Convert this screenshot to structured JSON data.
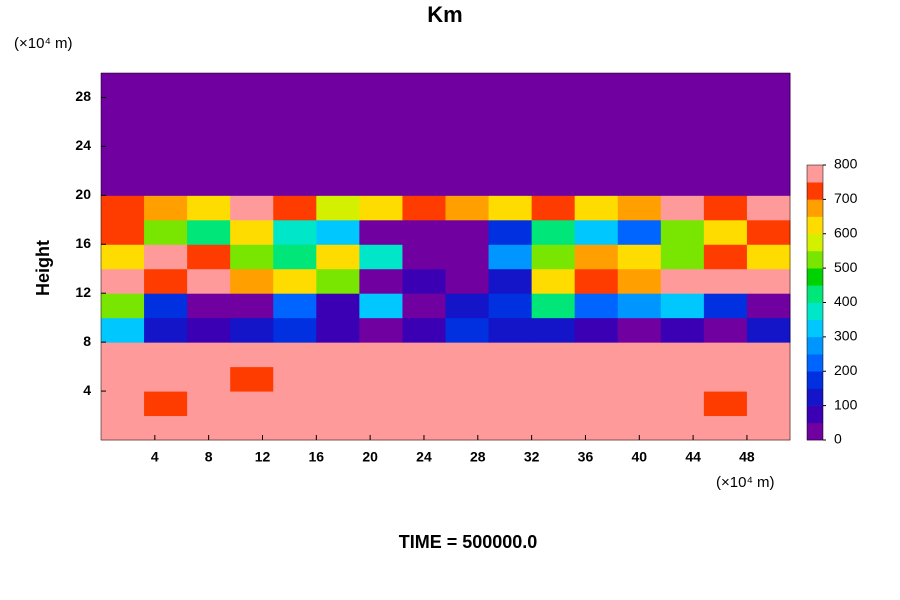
{
  "chart_data": {
    "type": "contour",
    "title": "Km",
    "y_unit": "(×10⁴ m)",
    "x_unit": "(×10⁴ m)",
    "ylabel": "Height",
    "footer": "TIME = 500000.0",
    "xlim": [
      0,
      51.2
    ],
    "ylim": [
      0,
      30
    ],
    "xticks": [
      4,
      8,
      12,
      16,
      20,
      24,
      28,
      32,
      36,
      40,
      44,
      48
    ],
    "yticks": [
      4,
      8,
      12,
      16,
      20,
      24,
      28
    ],
    "levels": [
      0,
      50,
      100,
      150,
      200,
      250,
      300,
      350,
      400,
      450,
      500,
      550,
      600,
      650,
      700,
      750,
      800
    ],
    "colors": [
      "#7000a0",
      "#3c00b4",
      "#1414c8",
      "#0030e0",
      "#0064ff",
      "#0096ff",
      "#00c8ff",
      "#00e6c8",
      "#00e678",
      "#00d200",
      "#78e600",
      "#d2f000",
      "#ffdc00",
      "#ffa000",
      "#ff3c00",
      "#ff9a9a"
    ],
    "colorbar_ticks": [
      0,
      100,
      200,
      300,
      400,
      500,
      600,
      700,
      800
    ],
    "z": [
      [
        800,
        800,
        800,
        800,
        800,
        800,
        800,
        800,
        800,
        800,
        800,
        800,
        800,
        800,
        800,
        800
      ],
      [
        800,
        700,
        800,
        800,
        800,
        800,
        800,
        800,
        800,
        800,
        800,
        800,
        800,
        750,
        700,
        800
      ],
      [
        800,
        800,
        800,
        700,
        800,
        800,
        800,
        800,
        800,
        750,
        800,
        750,
        800,
        800,
        800,
        800
      ],
      [
        800,
        800,
        800,
        800,
        800,
        800,
        800,
        800,
        750,
        800,
        800,
        800,
        800,
        800,
        800,
        800
      ],
      [
        300,
        100,
        50,
        100,
        150,
        50,
        0,
        50,
        150,
        100,
        100,
        50,
        0,
        50,
        0,
        100
      ],
      [
        500,
        150,
        0,
        0,
        200,
        50,
        300,
        0,
        100,
        150,
        400,
        200,
        250,
        300,
        150,
        0
      ],
      [
        800,
        700,
        800,
        650,
        600,
        500,
        0,
        50,
        0,
        100,
        600,
        700,
        650,
        800,
        750,
        800
      ],
      [
        600,
        800,
        700,
        500,
        400,
        600,
        350,
        0,
        0,
        250,
        500,
        650,
        600,
        500,
        700,
        600
      ],
      [
        700,
        500,
        400,
        600,
        350,
        300,
        0,
        0,
        0,
        150,
        400,
        300,
        200,
        500,
        600,
        700
      ],
      [
        700,
        650,
        600,
        800,
        700,
        550,
        600,
        700,
        650,
        600,
        700,
        600,
        650,
        800,
        700,
        750
      ],
      [
        0,
        0,
        0,
        0,
        0,
        0,
        0,
        0,
        0,
        0,
        0,
        0,
        0,
        0,
        0,
        0
      ],
      [
        0,
        0,
        0,
        0,
        0,
        0,
        0,
        0,
        0,
        0,
        0,
        0,
        0,
        0,
        0,
        0
      ],
      [
        0,
        0,
        0,
        0,
        0,
        0,
        0,
        0,
        0,
        0,
        0,
        0,
        0,
        0,
        0,
        0
      ],
      [
        0,
        0,
        0,
        0,
        0,
        0,
        0,
        0,
        0,
        0,
        0,
        0,
        0,
        0,
        0,
        0
      ],
      [
        0,
        0,
        0,
        0,
        0,
        0,
        0,
        0,
        0,
        0,
        0,
        0,
        0,
        0,
        0,
        0
      ]
    ]
  }
}
